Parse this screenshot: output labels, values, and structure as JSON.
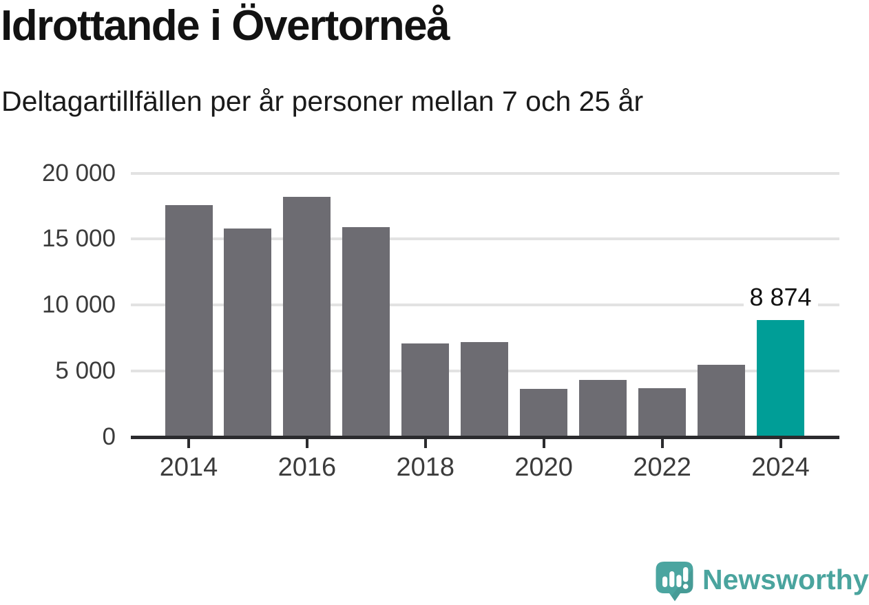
{
  "header": {
    "title": "Idrottande i Övertorneå",
    "subtitle": "Deltagartillfällen per år personer mellan 7 och 25 år"
  },
  "chart_data": {
    "type": "bar",
    "title": "Idrottande i Övertorneå",
    "subtitle": "Deltagartillfällen per år personer mellan 7 och 25 år",
    "categories": [
      "2014",
      "2015",
      "2016",
      "2017",
      "2018",
      "2019",
      "2020",
      "2021",
      "2022",
      "2023",
      "2024"
    ],
    "values": [
      17600,
      15800,
      18200,
      15900,
      7100,
      7200,
      3650,
      4350,
      3700,
      5450,
      8874
    ],
    "highlight": {
      "index": 10,
      "label": "8 874",
      "value": 8874
    },
    "bar_color": "#6d6c72",
    "highlight_color": "#009e97",
    "ylim": [
      0,
      20000
    ],
    "yticks": [
      {
        "value": 0,
        "label": "0"
      },
      {
        "value": 5000,
        "label": "5 000"
      },
      {
        "value": 10000,
        "label": "10 000"
      },
      {
        "value": 15000,
        "label": "15 000"
      },
      {
        "value": 20000,
        "label": "20 000"
      }
    ],
    "xtick_labels": [
      "2014",
      "2016",
      "2018",
      "2020",
      "2022",
      "2024"
    ],
    "grid": "horizontal",
    "legend": "none"
  },
  "branding": {
    "logo_text": "Newsworthy",
    "logo_icon": "newsworthy-speech-bubble-barchart-icon",
    "logo_color": "#4aa59f"
  }
}
